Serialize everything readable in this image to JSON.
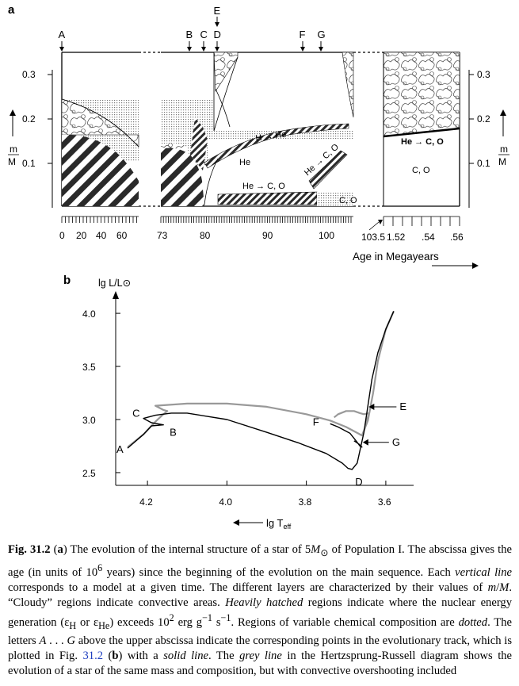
{
  "panel_a": {
    "label": "a",
    "top_letters": [
      "A",
      "B",
      "C",
      "D",
      "E",
      "F",
      "G"
    ],
    "y_ticks": [
      "0.3",
      "0.2",
      "0.1"
    ],
    "y_label_num": "m",
    "y_label_den": "M",
    "segment1_ticks": [
      "0",
      "20",
      "40",
      "60"
    ],
    "segment2_ticks": [
      "73",
      "80",
      "90",
      "100"
    ],
    "segment3_ticks": [
      "103.5",
      "1.52",
      ".54",
      ".56"
    ],
    "x_title": "Age in Megayears",
    "regions": {
      "h_he": "H → He",
      "he": "He",
      "he_co_lower": "He → C, O",
      "he_co_diag": "He → C, O",
      "co_mid": "C, O",
      "he_co_right": "He → C, O",
      "co_right": "C, O"
    }
  },
  "panel_b": {
    "label": "b",
    "y_title": "lg L/L⊙",
    "x_title": "lg T",
    "x_title_sub": "eff",
    "point_labels": [
      "A",
      "B",
      "C",
      "D",
      "E",
      "F",
      "G"
    ]
  },
  "chart_data": {
    "type": "line",
    "xlabel": "lg Teff",
    "ylabel": "lg L/L⊙",
    "x_ticks": [
      4.2,
      4.0,
      3.8,
      3.6
    ],
    "y_ticks": [
      4.0,
      3.5,
      3.0,
      2.5
    ],
    "xlim": [
      4.28,
      3.53
    ],
    "ylim": [
      2.38,
      4.15
    ],
    "x_axis_reversed": true,
    "series": [
      {
        "color": "#000000",
        "x": [
          4.25,
          4.21,
          4.19,
          4.16,
          4.19,
          4.21,
          4.18,
          4.14,
          4.1,
          4.0,
          3.9,
          3.82,
          3.75,
          3.71,
          3.695,
          3.685,
          3.672,
          3.655,
          3.645,
          3.635,
          3.62,
          3.6,
          3.58
        ],
        "y": [
          2.73,
          2.86,
          2.94,
          2.95,
          2.97,
          3.01,
          3.04,
          3.06,
          3.06,
          3.0,
          2.88,
          2.78,
          2.68,
          2.59,
          2.54,
          2.53,
          2.59,
          2.88,
          3.13,
          3.38,
          3.63,
          3.85,
          4.02
        ]
      },
      {
        "color": "#999999",
        "x": [
          4.25,
          4.21,
          4.18,
          4.16,
          4.15,
          4.16,
          4.18,
          4.1,
          4.0,
          3.9,
          3.8,
          3.74,
          3.7,
          3.67,
          3.66,
          3.645,
          3.632,
          3.62,
          3.6,
          3.58
        ],
        "y": [
          2.74,
          2.86,
          2.98,
          3.05,
          3.08,
          3.09,
          3.13,
          3.15,
          3.15,
          3.12,
          3.05,
          2.99,
          2.93,
          2.87,
          2.85,
          2.99,
          3.25,
          3.55,
          3.85,
          4.02
        ]
      }
    ],
    "loops": [
      {
        "color": "#000000",
        "x": [
          3.74,
          3.72,
          3.69,
          3.675,
          3.665,
          3.66,
          3.668,
          3.68
        ],
        "y": [
          2.96,
          2.93,
          2.87,
          2.8,
          2.75,
          2.74,
          2.77,
          2.8
        ]
      },
      {
        "color": "#999999",
        "x": [
          3.73,
          3.72,
          3.7,
          3.68,
          3.665,
          3.655,
          3.642,
          3.648,
          3.652
        ],
        "y": [
          3.02,
          3.05,
          3.08,
          3.08,
          3.06,
          3.05,
          3.06,
          2.99,
          2.95
        ]
      }
    ],
    "annotated_points": [
      {
        "label": "A",
        "x": 4.25,
        "y": 2.73
      },
      {
        "label": "B",
        "x": 4.16,
        "y": 2.95
      },
      {
        "label": "C",
        "x": 4.21,
        "y": 3.01
      },
      {
        "label": "D",
        "x": 3.685,
        "y": 2.53
      },
      {
        "label": "E",
        "x": 3.645,
        "y": 3.06
      },
      {
        "label": "F",
        "x": 3.74,
        "y": 2.96
      },
      {
        "label": "G",
        "x": 3.66,
        "y": 2.77
      }
    ]
  },
  "caption": {
    "label": "Fig. 31.2",
    "text_html": "(<b>a</b>) The evolution of the internal structure of a star of 5<i>M</i><sub>⊙</sub> of Population I. The abscissa gives the age (in units of 10<sup>6</sup> years) since the beginning of the evolution on the main sequence. Each <i>vertical line</i> corresponds to a model at a given time. The different layers are characterized by their values of <i>m</i>/<i>M</i>. “Cloudy” regions indicate convective areas. <i>Heavily hatched</i> regions indicate where the nuclear energy generation (ε<sub>H</sub> or ε<sub>He</sub>) exceeds 10<sup>2</sup> erg g<sup>−1</sup> s<sup>−1</sup>. Regions of variable chemical composition are <i>dotted</i>. The letters <i>A</i> . . . <i>G</i> above the upper abscissa indicate the corresponding points in the evolutionary track, which is plotted in Fig. <span class=\"ref\">31.2</span> (<b>b</b>) with a <i>solid line</i>. The <i>grey line</i> in the Hertzsprung-Russell diagram shows the evolution of a star of the same mass and composition, but with convective overshooting included"
  }
}
